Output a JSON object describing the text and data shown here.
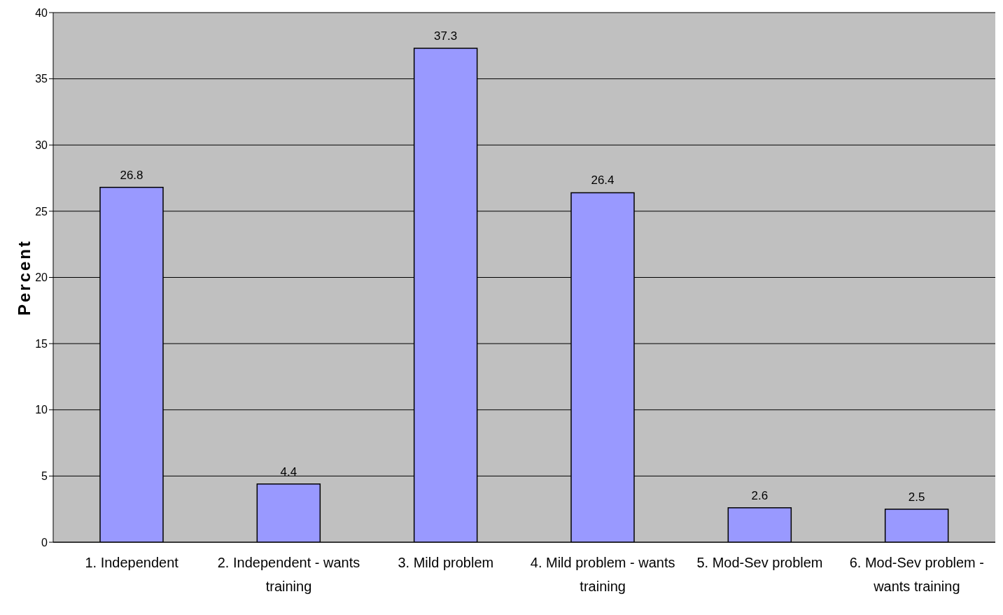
{
  "chart_data": {
    "type": "bar",
    "ylabel": "Percent",
    "categories": [
      "1.  Independent",
      "2.  Independent - wants training",
      "3.  Mild problem",
      "4.  Mild problem - wants training",
      "5.  Mod-Sev problem",
      "6.  Mod-Sev problem - wants training"
    ],
    "values": [
      26.8,
      4.4,
      37.3,
      26.4,
      2.6,
      2.5
    ],
    "color": "#9999ff",
    "ylim": [
      0,
      40
    ],
    "yticks": [
      0,
      5,
      10,
      15,
      20,
      25,
      30,
      35,
      40
    ],
    "grid": "y",
    "data_labels": true
  }
}
